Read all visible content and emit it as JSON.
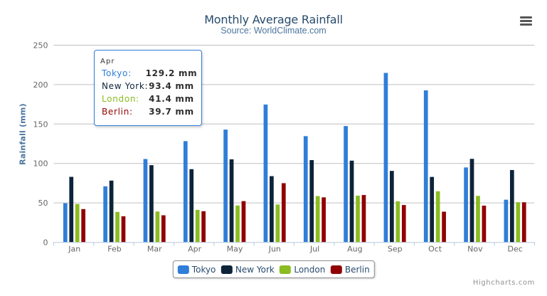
{
  "title": "Monthly Average Rainfall",
  "subtitle": "Source: WorldClimate.com",
  "credits": "Highcharts.com",
  "y_axis": {
    "title": "Rainfall (mm)",
    "ticks": [
      0,
      50,
      100,
      150,
      200,
      250
    ]
  },
  "x_axis": {
    "categories": [
      "Jan",
      "Feb",
      "Mar",
      "Apr",
      "May",
      "Jun",
      "Jul",
      "Aug",
      "Sep",
      "Oct",
      "Nov",
      "Dec"
    ]
  },
  "tooltip": {
    "header": "Apr",
    "rows": [
      {
        "name": "Tokyo:",
        "value": "129.2 mm"
      },
      {
        "name": "New York:",
        "value": "93.4 mm"
      },
      {
        "name": "London:",
        "value": "41.4 mm"
      },
      {
        "name": "Berlin:",
        "value": "39.7 mm"
      }
    ]
  },
  "colors": {
    "grid_line": "#C0C0C0",
    "axis_line": "#C0D0E0",
    "axis_label": "#666666",
    "title_text": "#274b6d",
    "subtitle_text": "#4d759e",
    "y_title_text": "#4d759e",
    "legend_text": "#274b6d",
    "tooltip_border": "#2f7ed8",
    "credits_text": "#909090"
  },
  "chart_data": {
    "type": "bar",
    "title": "Monthly Average Rainfall",
    "subtitle": "Source: WorldClimate.com",
    "xlabel": "",
    "ylabel": "Rainfall (mm)",
    "ylim": [
      0,
      250
    ],
    "grid": true,
    "legend_position": "bottom",
    "categories": [
      "Jan",
      "Feb",
      "Mar",
      "Apr",
      "May",
      "Jun",
      "Jul",
      "Aug",
      "Sep",
      "Oct",
      "Nov",
      "Dec"
    ],
    "series": [
      {
        "name": "Tokyo",
        "color": "#2f7ed8",
        "values": [
          49.9,
          71.5,
          106.4,
          129.2,
          144.0,
          176.0,
          135.6,
          148.5,
          216.4,
          194.1,
          95.6,
          54.4
        ]
      },
      {
        "name": "New York",
        "color": "#0d233a",
        "values": [
          83.6,
          78.8,
          98.5,
          93.4,
          106.0,
          84.5,
          105.0,
          104.3,
          91.2,
          83.5,
          106.6,
          92.3
        ]
      },
      {
        "name": "London",
        "color": "#8bbc21",
        "values": [
          48.9,
          38.8,
          39.3,
          41.4,
          47.0,
          48.3,
          59.0,
          59.6,
          52.4,
          65.2,
          59.3,
          51.2
        ]
      },
      {
        "name": "Berlin",
        "color": "#910000",
        "values": [
          42.4,
          33.2,
          34.5,
          39.7,
          52.6,
          75.5,
          57.4,
          60.4,
          47.6,
          39.1,
          46.8,
          51.1
        ]
      }
    ]
  }
}
